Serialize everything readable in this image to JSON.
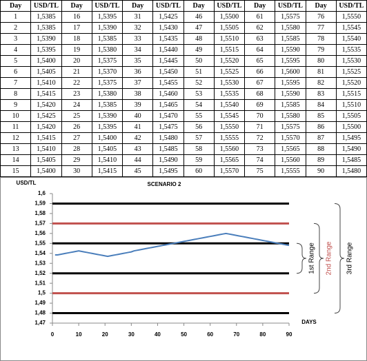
{
  "table": {
    "header": [
      "Day",
      "USD/TL",
      "Day",
      "USD/TL",
      "Day",
      "USD/TL",
      "Day",
      "USD/TL",
      "Day",
      "USD/TL",
      "Day",
      "USD/TL"
    ],
    "rows": [
      [
        1,
        "1,5385",
        16,
        "1,5395",
        31,
        "1,5425",
        46,
        "1,5500",
        61,
        "1,5575",
        76,
        "1,5550"
      ],
      [
        2,
        "1,5385",
        17,
        "1,5390",
        32,
        "1,5430",
        47,
        "1,5505",
        62,
        "1,5580",
        77,
        "1,5545"
      ],
      [
        3,
        "1,5390",
        18,
        "1,5385",
        33,
        "1,5435",
        48,
        "1,5510",
        63,
        "1,5585",
        78,
        "1,5540"
      ],
      [
        4,
        "1,5395",
        19,
        "1,5380",
        34,
        "1,5440",
        49,
        "1,5515",
        64,
        "1,5590",
        79,
        "1,5535"
      ],
      [
        5,
        "1,5400",
        20,
        "1,5375",
        35,
        "1,5445",
        50,
        "1,5520",
        65,
        "1,5595",
        80,
        "1,5530"
      ],
      [
        6,
        "1,5405",
        21,
        "1,5370",
        36,
        "1,5450",
        51,
        "1,5525",
        66,
        "1,5600",
        81,
        "1,5525"
      ],
      [
        7,
        "1,5410",
        22,
        "1,5375",
        37,
        "1,5455",
        52,
        "1,5530",
        67,
        "1,5595",
        82,
        "1,5520"
      ],
      [
        8,
        "1,5415",
        23,
        "1,5380",
        38,
        "1,5460",
        53,
        "1,5535",
        68,
        "1,5590",
        83,
        "1,5515"
      ],
      [
        9,
        "1,5420",
        24,
        "1,5385",
        39,
        "1,5465",
        54,
        "1,5540",
        69,
        "1,5585",
        84,
        "1,5510"
      ],
      [
        10,
        "1,5425",
        25,
        "1,5390",
        40,
        "1,5470",
        55,
        "1,5545",
        70,
        "1,5580",
        85,
        "1,5505"
      ],
      [
        11,
        "1,5420",
        26,
        "1,5395",
        41,
        "1,5475",
        56,
        "1,5550",
        71,
        "1,5575",
        86,
        "1,5500"
      ],
      [
        12,
        "1,5415",
        27,
        "1,5400",
        42,
        "1,5480",
        57,
        "1,5555",
        72,
        "1,5570",
        87,
        "1,5495"
      ],
      [
        13,
        "1,5410",
        28,
        "1,5405",
        43,
        "1,5485",
        58,
        "1,5560",
        73,
        "1,5565",
        88,
        "1,5490"
      ],
      [
        14,
        "1,5405",
        29,
        "1,5410",
        44,
        "1,5490",
        59,
        "1,5565",
        74,
        "1,5560",
        89,
        "1,5485"
      ],
      [
        15,
        "1,5400",
        30,
        "1,5415",
        45,
        "1,5495",
        60,
        "1,5570",
        75,
        "1,5555",
        90,
        "1,5480"
      ]
    ]
  },
  "chart_data": {
    "type": "line",
    "title": "SCENARIO 2",
    "y_label": "USD/TL",
    "x_label": "DAYS",
    "x": [
      1,
      2,
      3,
      4,
      5,
      6,
      7,
      8,
      9,
      10,
      11,
      12,
      13,
      14,
      15,
      16,
      17,
      18,
      19,
      20,
      21,
      22,
      23,
      24,
      25,
      26,
      27,
      28,
      29,
      30,
      31,
      32,
      33,
      34,
      35,
      36,
      37,
      38,
      39,
      40,
      41,
      42,
      43,
      44,
      45,
      46,
      47,
      48,
      49,
      50,
      51,
      52,
      53,
      54,
      55,
      56,
      57,
      58,
      59,
      60,
      61,
      62,
      63,
      64,
      65,
      66,
      67,
      68,
      69,
      70,
      71,
      72,
      73,
      74,
      75,
      76,
      77,
      78,
      79,
      80,
      81,
      82,
      83,
      84,
      85,
      86,
      87,
      88,
      89,
      90
    ],
    "series": [
      {
        "color": "#4a7ebb",
        "values": [
          1.5385,
          1.5385,
          1.539,
          1.5395,
          1.54,
          1.5405,
          1.541,
          1.5415,
          1.542,
          1.5425,
          1.542,
          1.5415,
          1.541,
          1.5405,
          1.54,
          1.5395,
          1.539,
          1.5385,
          1.538,
          1.5375,
          1.537,
          1.5375,
          1.538,
          1.5385,
          1.539,
          1.5395,
          1.54,
          1.5405,
          1.541,
          1.5415,
          1.5425,
          1.543,
          1.5435,
          1.544,
          1.5445,
          1.545,
          1.5455,
          1.546,
          1.5465,
          1.547,
          1.5475,
          1.548,
          1.5485,
          1.549,
          1.5495,
          1.55,
          1.5505,
          1.551,
          1.5515,
          1.552,
          1.5525,
          1.553,
          1.5535,
          1.554,
          1.5545,
          1.555,
          1.5555,
          1.556,
          1.5565,
          1.557,
          1.5575,
          1.558,
          1.5585,
          1.559,
          1.5595,
          1.56,
          1.5595,
          1.559,
          1.5585,
          1.558,
          1.5575,
          1.557,
          1.5565,
          1.556,
          1.5555,
          1.555,
          1.5545,
          1.554,
          1.5535,
          1.553,
          1.5525,
          1.552,
          1.5515,
          1.551,
          1.5505,
          1.55,
          1.5495,
          1.549,
          1.5485,
          1.548
        ]
      }
    ],
    "xlim": [
      0,
      90
    ],
    "xticks": [
      0,
      10,
      20,
      30,
      40,
      50,
      60,
      70,
      80,
      90
    ],
    "ylim": [
      1.47,
      1.6
    ],
    "yticks": [
      {
        "value": 1.47,
        "label": "1,47"
      },
      {
        "value": 1.48,
        "label": "1,48"
      },
      {
        "value": 1.49,
        "label": "1,49"
      },
      {
        "value": 1.5,
        "label": "1,5"
      },
      {
        "value": 1.51,
        "label": "1,51"
      },
      {
        "value": 1.52,
        "label": "1,52"
      },
      {
        "value": 1.53,
        "label": "1,53"
      },
      {
        "value": 1.54,
        "label": "1,54"
      },
      {
        "value": 1.55,
        "label": "1,55"
      },
      {
        "value": 1.56,
        "label": "1,56"
      },
      {
        "value": 1.57,
        "label": "1,57"
      },
      {
        "value": 1.58,
        "label": "1,58"
      },
      {
        "value": 1.59,
        "label": "1,59"
      },
      {
        "value": 1.6,
        "label": "1,6"
      }
    ],
    "hlines": [
      {
        "value": 1.59,
        "color": "#000000"
      },
      {
        "value": 1.57,
        "color": "#c0504d"
      },
      {
        "value": 1.55,
        "color": "#000000"
      },
      {
        "value": 1.52,
        "color": "#000000"
      },
      {
        "value": 1.5,
        "color": "#c0504d"
      },
      {
        "value": 1.48,
        "color": "#000000"
      }
    ],
    "ranges": [
      {
        "label": "1st Range",
        "from": 1.52,
        "to": 1.55,
        "color": "#000000"
      },
      {
        "label": "2nd Range",
        "from": 1.5,
        "to": 1.57,
        "color": "#c0504d"
      },
      {
        "label": "3rd Range",
        "from": 1.48,
        "to": 1.59,
        "color": "#000000"
      }
    ]
  }
}
